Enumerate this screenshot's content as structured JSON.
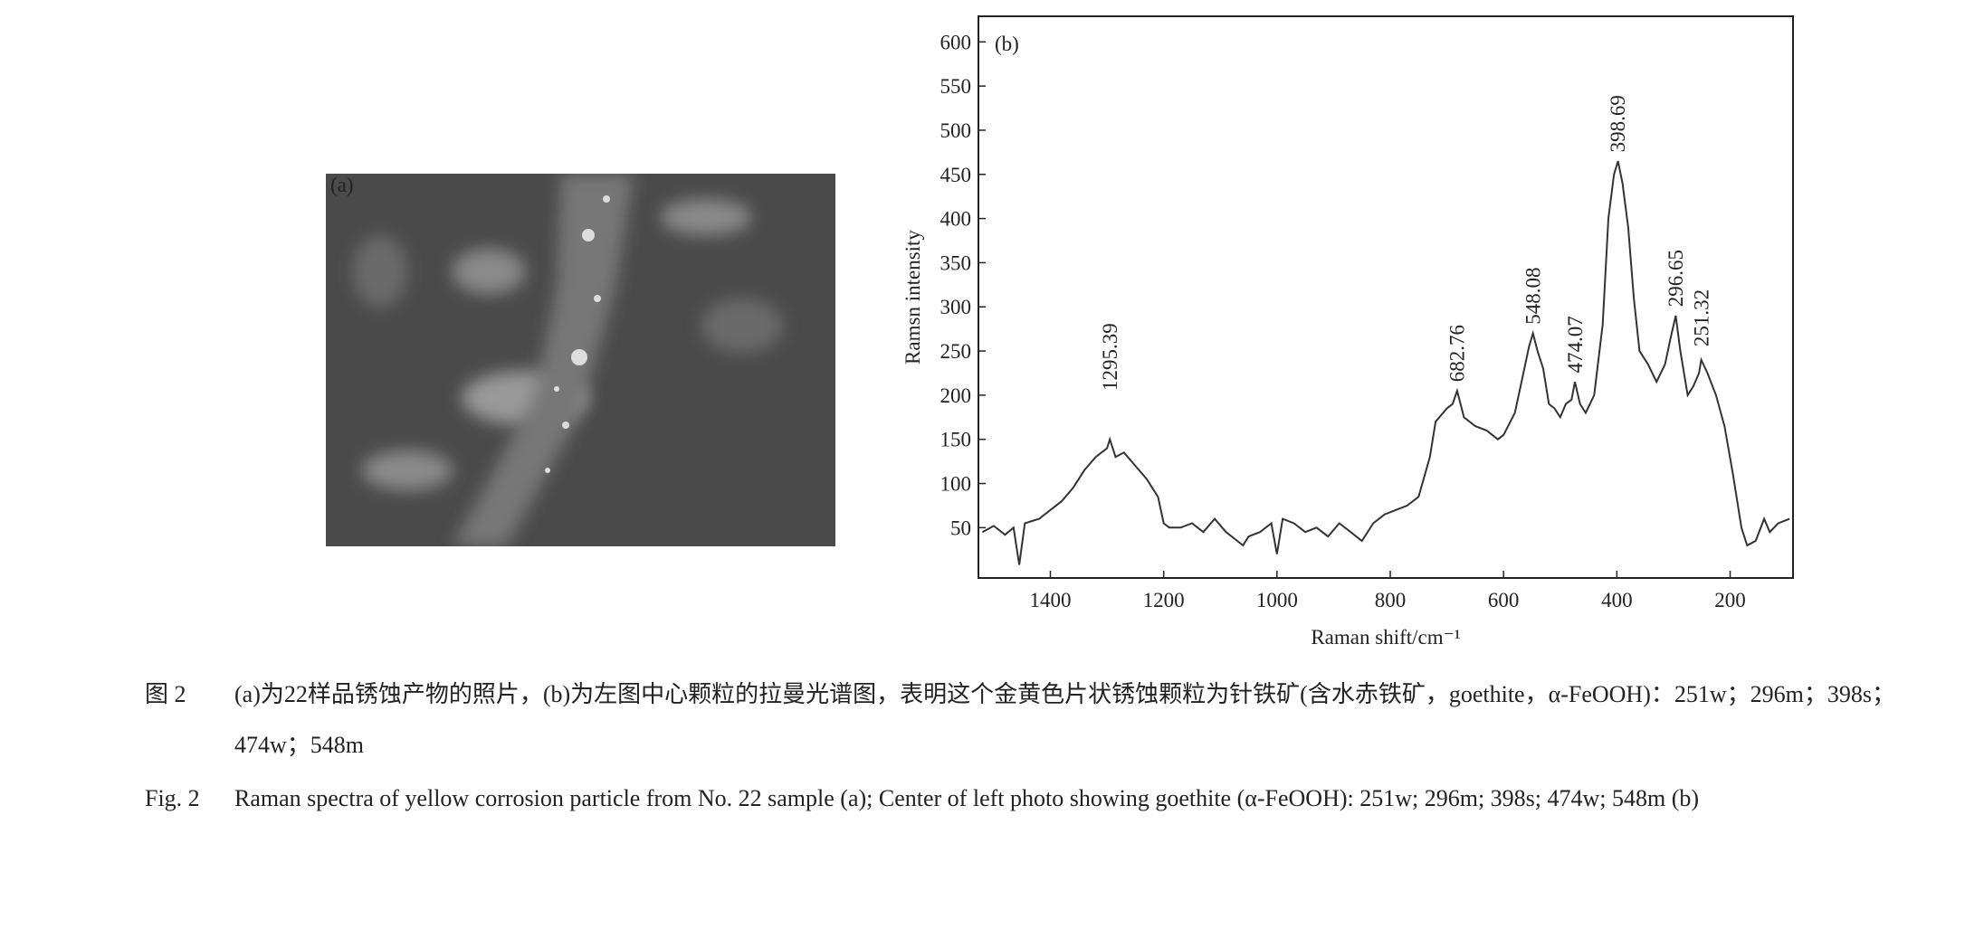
{
  "photo": {
    "label": "(a)"
  },
  "chart_data": {
    "type": "line",
    "panel_label": "(b)",
    "x_label": "Raman shift/cm⁻¹",
    "y_label": "Ramsn intensity",
    "x": [
      1520,
      1500,
      1480,
      1465,
      1455,
      1445,
      1420,
      1400,
      1380,
      1360,
      1340,
      1320,
      1300,
      1295,
      1285,
      1270,
      1250,
      1230,
      1210,
      1200,
      1190,
      1170,
      1150,
      1130,
      1110,
      1090,
      1070,
      1060,
      1050,
      1030,
      1010,
      1000,
      990,
      970,
      950,
      930,
      910,
      890,
      870,
      850,
      830,
      810,
      790,
      770,
      750,
      730,
      720,
      700,
      690,
      682,
      670,
      650,
      630,
      610,
      600,
      580,
      565,
      555,
      548,
      540,
      530,
      520,
      510,
      500,
      490,
      480,
      474,
      465,
      455,
      440,
      425,
      415,
      405,
      398,
      390,
      380,
      370,
      360,
      345,
      330,
      315,
      305,
      296,
      288,
      275,
      265,
      255,
      251,
      240,
      225,
      210,
      195,
      180,
      170,
      155,
      140,
      130,
      115,
      95
    ],
    "values": [
      45,
      52,
      42,
      50,
      8,
      55,
      60,
      70,
      80,
      95,
      115,
      130,
      140,
      150,
      130,
      135,
      120,
      105,
      85,
      55,
      50,
      50,
      55,
      45,
      60,
      45,
      35,
      30,
      40,
      45,
      55,
      20,
      60,
      55,
      45,
      50,
      40,
      55,
      45,
      35,
      55,
      65,
      70,
      75,
      85,
      130,
      170,
      185,
      190,
      205,
      175,
      165,
      160,
      150,
      155,
      180,
      225,
      255,
      270,
      250,
      230,
      190,
      185,
      175,
      190,
      195,
      215,
      190,
      180,
      200,
      280,
      400,
      450,
      465,
      440,
      390,
      310,
      250,
      235,
      215,
      235,
      265,
      290,
      250,
      200,
      210,
      225,
      240,
      225,
      200,
      165,
      110,
      50,
      30,
      35,
      60,
      45,
      55,
      60
    ],
    "color": "#333333",
    "xlim": [
      1527,
      89
    ],
    "ylim": [
      -7,
      629
    ],
    "xticks": [
      1400,
      1200,
      1000,
      800,
      600,
      400,
      200
    ],
    "yticks": [
      50,
      100,
      150,
      200,
      250,
      300,
      350,
      400,
      450,
      500,
      550,
      600
    ],
    "peaks": [
      {
        "x": 1295.39,
        "y": 205
      },
      {
        "x": 682.76,
        "y": 215
      },
      {
        "x": 548.08,
        "y": 280
      },
      {
        "x": 474.07,
        "y": 225
      },
      {
        "x": 398.69,
        "y": 475
      },
      {
        "x": 296.65,
        "y": 300
      },
      {
        "x": 251.32,
        "y": 255
      }
    ]
  },
  "captions": [
    {
      "label": "图 2",
      "text": "(a)为22样品锈蚀产物的照片，(b)为左图中心颗粒的拉曼光谱图，表明这个金黄色片状锈蚀颗粒为针铁矿(含水赤铁矿，goethite，α-FeOOH)：251w；296m；398s；474w；548m"
    },
    {
      "label": "Fig. 2",
      "text": "Raman spectra of yellow corrosion particle from No. 22 sample (a); Center of left photo showing goethite (α-FeOOH): 251w; 296m; 398s; 474w; 548m (b)"
    }
  ]
}
